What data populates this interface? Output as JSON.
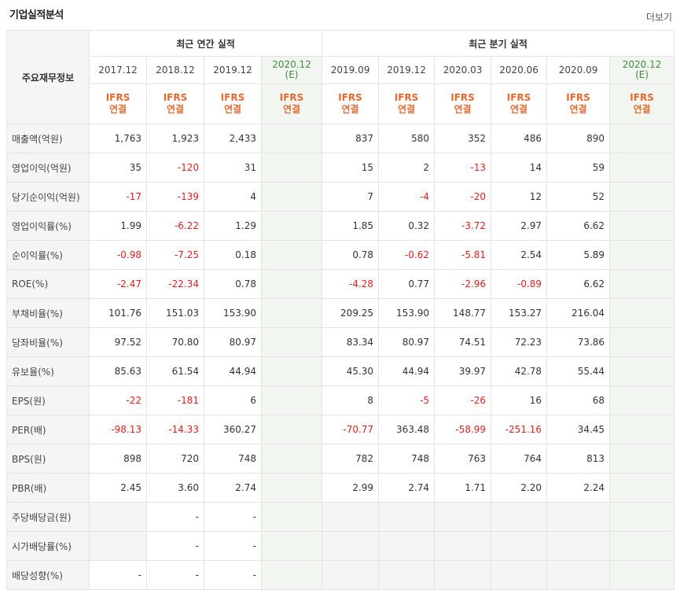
{
  "header": {
    "title": "기업실적분석",
    "more_label": "더보기"
  },
  "table": {
    "corner_label": "주요재무정보",
    "group_annual": "최근 연간 실적",
    "group_quarter": "최근 분기 실적",
    "annual_periods": [
      {
        "label": "2017.12",
        "est": ""
      },
      {
        "label": "2018.12",
        "est": ""
      },
      {
        "label": "2019.12",
        "est": ""
      },
      {
        "label": "2020.12",
        "est": "(E)"
      }
    ],
    "quarter_periods": [
      {
        "label": "2019.09",
        "est": ""
      },
      {
        "label": "2019.12",
        "est": ""
      },
      {
        "label": "2020.03",
        "est": ""
      },
      {
        "label": "2020.06",
        "est": ""
      },
      {
        "label": "2020.09",
        "est": ""
      },
      {
        "label": "2020.12",
        "est": "(E)"
      }
    ],
    "standard_line1": "IFRS",
    "standard_line2": "연결",
    "rows": [
      {
        "label": "매출액(억원)",
        "values": [
          "1,763",
          "1,923",
          "2,433",
          "",
          "837",
          "580",
          "352",
          "486",
          "890",
          ""
        ]
      },
      {
        "label": "영업이익(억원)",
        "values": [
          "35",
          "-120",
          "31",
          "",
          "15",
          "2",
          "-13",
          "14",
          "59",
          ""
        ]
      },
      {
        "label": "당기순이익(억원)",
        "values": [
          "-17",
          "-139",
          "4",
          "",
          "7",
          "-4",
          "-20",
          "12",
          "52",
          ""
        ]
      },
      {
        "label": "영업이익률(%)",
        "values": [
          "1.99",
          "-6.22",
          "1.29",
          "",
          "1.85",
          "0.32",
          "-3.72",
          "2.97",
          "6.62",
          ""
        ]
      },
      {
        "label": "순이익률(%)",
        "values": [
          "-0.98",
          "-7.25",
          "0.18",
          "",
          "0.78",
          "-0.62",
          "-5.81",
          "2.54",
          "5.89",
          ""
        ]
      },
      {
        "label": "ROE(%)",
        "values": [
          "-2.47",
          "-22.34",
          "0.78",
          "",
          "-4.28",
          "0.77",
          "-2.96",
          "-0.89",
          "6.62",
          ""
        ]
      },
      {
        "label": "부채비율(%)",
        "values": [
          "101.76",
          "151.03",
          "153.90",
          "",
          "209.25",
          "153.90",
          "148.77",
          "153.27",
          "216.04",
          ""
        ]
      },
      {
        "label": "당좌비율(%)",
        "values": [
          "97.52",
          "70.80",
          "80.97",
          "",
          "83.34",
          "80.97",
          "74.51",
          "72.23",
          "73.86",
          ""
        ]
      },
      {
        "label": "유보율(%)",
        "values": [
          "85.63",
          "61.54",
          "44.94",
          "",
          "45.30",
          "44.94",
          "39.97",
          "42.78",
          "55.44",
          ""
        ]
      },
      {
        "label": "EPS(원)",
        "values": [
          "-22",
          "-181",
          "6",
          "",
          "8",
          "-5",
          "-26",
          "16",
          "68",
          ""
        ]
      },
      {
        "label": "PER(배)",
        "values": [
          "-98.13",
          "-14.33",
          "360.27",
          "",
          "-70.77",
          "363.48",
          "-58.99",
          "-251.16",
          "34.45",
          ""
        ]
      },
      {
        "label": "BPS(원)",
        "values": [
          "898",
          "720",
          "748",
          "",
          "782",
          "748",
          "763",
          "764",
          "813",
          ""
        ]
      },
      {
        "label": "PBR(배)",
        "values": [
          "2.45",
          "3.60",
          "2.74",
          "",
          "2.99",
          "2.74",
          "1.71",
          "2.20",
          "2.24",
          ""
        ]
      },
      {
        "label": "주당배당금(원)",
        "values": [
          "",
          "-",
          "-",
          "",
          "",
          "",
          "",
          "",
          "",
          ""
        ]
      },
      {
        "label": "시가배당률(%)",
        "values": [
          "",
          "-",
          "-",
          "",
          "",
          "",
          "",
          "",
          "",
          ""
        ]
      },
      {
        "label": "배당성향(%)",
        "values": [
          "-",
          "-",
          "-",
          "",
          "",
          "",
          "",
          "",
          "",
          ""
        ]
      }
    ]
  }
}
